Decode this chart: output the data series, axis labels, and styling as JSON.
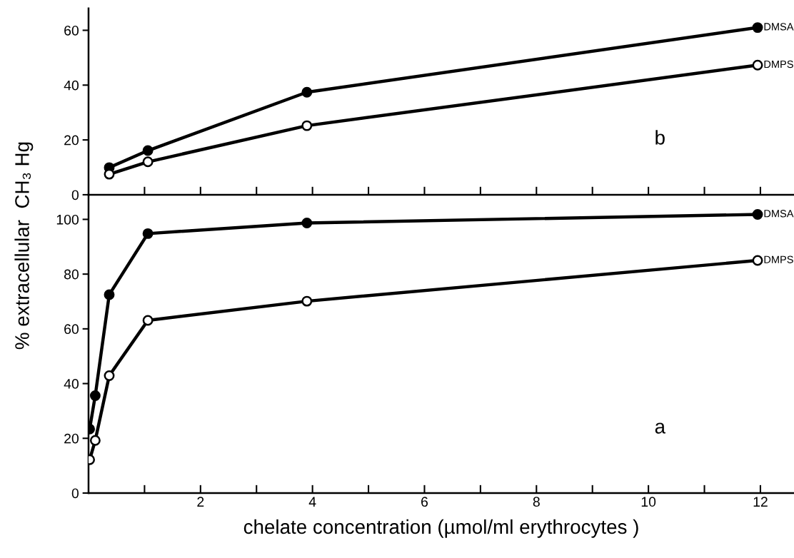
{
  "chart_data": [
    {
      "type": "line",
      "ylabel": "% extracellular  CH₃ Hg",
      "annotations": [
        "b"
      ],
      "xlim": [
        0,
        12.6
      ],
      "ylim": [
        0,
        68
      ],
      "xticks": [
        {
          "value": 1,
          "label": null
        },
        {
          "value": 2,
          "label": null
        },
        {
          "value": 3,
          "label": null
        },
        {
          "value": 4,
          "label": null
        },
        {
          "value": 5,
          "label": null
        },
        {
          "value": 6,
          "label": null
        },
        {
          "value": 7,
          "label": null
        },
        {
          "value": 8,
          "label": null
        },
        {
          "value": 9,
          "label": null
        },
        {
          "value": 10,
          "label": null
        },
        {
          "value": 11,
          "label": null
        },
        {
          "value": 12,
          "label": null
        }
      ],
      "yticks": [
        0,
        20,
        40,
        60
      ],
      "tick_labels": "y",
      "marker": "circle",
      "grid": false,
      "legend": false,
      "series": [
        {
          "name": "DMSA",
          "color": "#000000",
          "colors": [
            "#000000",
            "#000000",
            "#000000",
            "#000000"
          ],
          "x": [
            0.37,
            1.06,
            3.9,
            11.95
          ],
          "values": [
            9.9,
            16.1,
            37.4,
            61
          ]
        },
        {
          "name": "DMPS",
          "color": "#000000",
          "colors": [
            "#ffffff",
            "#ffffff",
            "#ffffff",
            "#ffffff"
          ],
          "x": [
            0.37,
            1.06,
            3.9,
            11.95
          ],
          "values": [
            7.5,
            12,
            25.2,
            47.3
          ]
        }
      ]
    },
    {
      "type": "line",
      "xlabel": "chelate concentration (µmol/ml erythrocytes )",
      "annotations": [
        "a"
      ],
      "xlim": [
        0,
        12.6
      ],
      "ylim": [
        0,
        109
      ],
      "xticks": [
        {
          "value": 1,
          "label": null
        },
        2,
        {
          "value": 3,
          "label": null
        },
        4,
        {
          "value": 5,
          "label": null
        },
        6,
        {
          "value": 7,
          "label": null
        },
        8,
        {
          "value": 9,
          "label": null
        },
        10,
        {
          "value": 11,
          "label": null
        },
        12
      ],
      "yticks": [
        0,
        20,
        40,
        60,
        80,
        100
      ],
      "marker": "circle",
      "grid": false,
      "legend": false,
      "series": [
        {
          "name": "DMSA",
          "color": "#000000",
          "colors": [
            "#000000",
            "#000000",
            "#000000",
            "#000000",
            "#000000",
            "#000000"
          ],
          "x": [
            0.02,
            0.12,
            0.37,
            1.06,
            3.9,
            11.95
          ],
          "values": [
            23.4,
            35.6,
            72.5,
            94.8,
            98.7,
            101.8
          ]
        },
        {
          "name": "DMPS",
          "color": "#000000",
          "colors": [
            "#ffffff",
            "#ffffff",
            "#ffffff",
            "#ffffff",
            "#ffffff",
            "#ffffff"
          ],
          "x": [
            0.02,
            0.12,
            0.37,
            1.06,
            3.9,
            11.95
          ],
          "values": [
            12.2,
            19.2,
            42.9,
            63.1,
            70.1,
            85
          ]
        }
      ]
    }
  ]
}
